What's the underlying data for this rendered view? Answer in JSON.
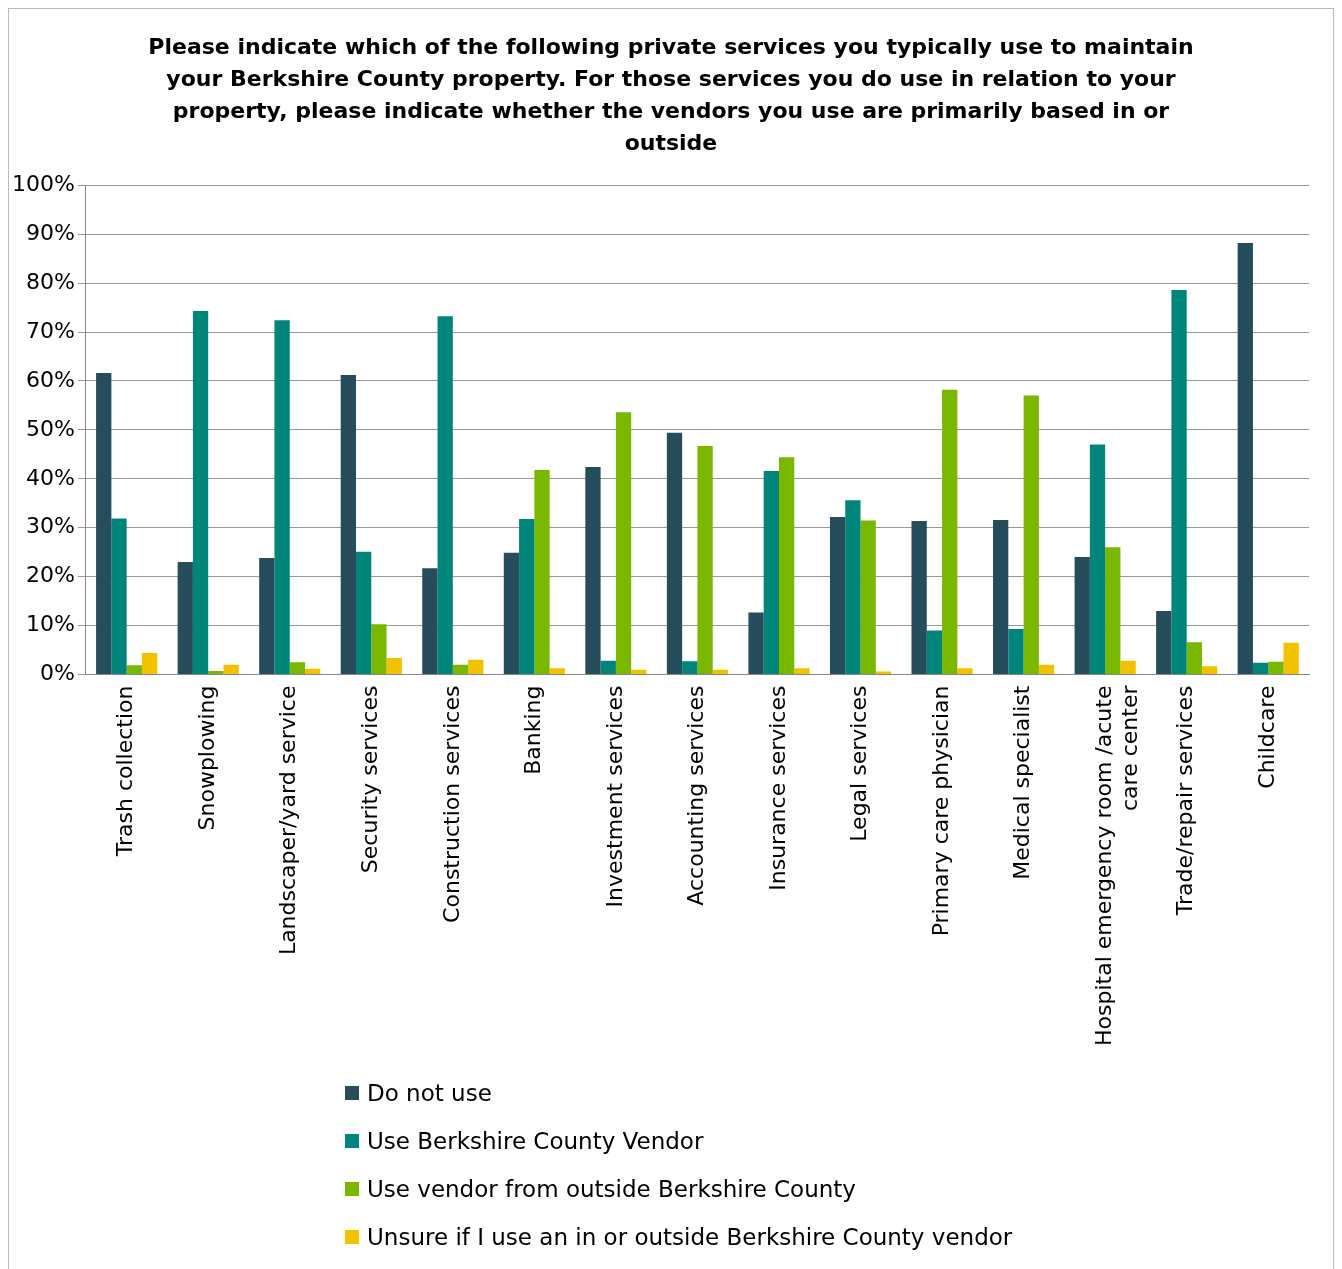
{
  "chart_data": {
    "type": "bar",
    "title": "Please indicate which of the following private services you typically use to maintain your Berkshire County property. For those services you do use in relation to your property, please indicate whether the vendors you use are primarily based in or outside",
    "categories": [
      "Trash collection",
      "Snowplowing",
      "Landscaper/yard service",
      "Security services",
      "Construction services",
      "Banking",
      "Investment services",
      "Accounting services",
      "Insurance services",
      "Legal services",
      "Primary care physician",
      "Medical specialist",
      "Hospital emergency room /acute care center",
      "Trade/repair services",
      "Childcare"
    ],
    "series": [
      {
        "name": "Do not use",
        "color": "#264d5c",
        "values": [
          61.6,
          23,
          23.8,
          61.2,
          21.7,
          24.9,
          42.4,
          49.4,
          12.7,
          32.2,
          31.4,
          31.6,
          24,
          13,
          88.2
        ]
      },
      {
        "name": "Use Berkshire County Vendor",
        "color": "#00857a",
        "values": [
          31.9,
          74.3,
          72.4,
          25.1,
          73.2,
          31.8,
          2.8,
          2.7,
          41.6,
          35.6,
          9,
          9.3,
          47,
          78.6,
          2.4
        ]
      },
      {
        "name": "Use vendor from outside Berkshire County",
        "color": "#7ab800",
        "values": [
          1.9,
          0.7,
          2.5,
          10.3,
          2,
          41.8,
          53.6,
          46.7,
          44.4,
          31.5,
          58.2,
          57,
          26,
          6.6,
          2.6
        ]
      },
      {
        "name": "Unsure if I use an in or outside Berkshire County vendor",
        "color": "#f2c200",
        "values": [
          4.4,
          2,
          1.2,
          3.4,
          3,
          1.3,
          1,
          1,
          1.3,
          0.6,
          1.3,
          2,
          2.8,
          1.7,
          6.5
        ]
      }
    ],
    "ylim": [
      0,
      100
    ],
    "yticks": [
      {
        "value": 0,
        "label": "0%"
      },
      {
        "value": 10,
        "label": "10%"
      },
      {
        "value": 20,
        "label": "20%"
      },
      {
        "value": 30,
        "label": "30%"
      },
      {
        "value": 40,
        "label": "40%"
      },
      {
        "value": 50,
        "label": "50%"
      },
      {
        "value": 60,
        "label": "60%"
      },
      {
        "value": 70,
        "label": "70%"
      },
      {
        "value": 80,
        "label": "80%"
      },
      {
        "value": 90,
        "label": "90%"
      },
      {
        "value": 100,
        "label": "100%"
      }
    ],
    "grid": "y",
    "legend": "bottom"
  }
}
